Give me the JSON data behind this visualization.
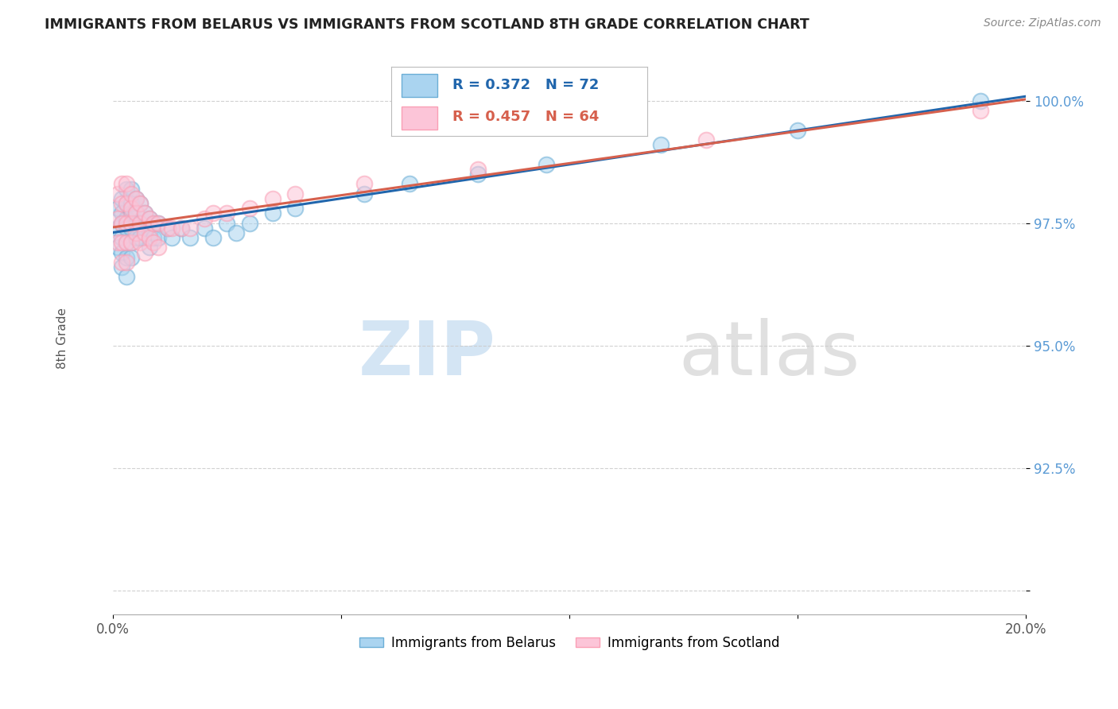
{
  "title": "IMMIGRANTS FROM BELARUS VS IMMIGRANTS FROM SCOTLAND 8TH GRADE CORRELATION CHART",
  "source": "Source: ZipAtlas.com",
  "ylabel": "8th Grade",
  "legend_label1": "Immigrants from Belarus",
  "legend_label2": "Immigrants from Scotland",
  "R1": 0.372,
  "N1": 72,
  "R2": 0.457,
  "N2": 64,
  "color1": "#6baed6",
  "color2": "#fa9fb5",
  "line_color1": "#2166ac",
  "line_color2": "#d6604d",
  "xlim": [
    0.0,
    0.2
  ],
  "ylim": [
    0.895,
    1.008
  ],
  "xticks": [
    0.0,
    0.05,
    0.1,
    0.15,
    0.2
  ],
  "yticks": [
    0.9,
    0.925,
    0.95,
    0.975,
    1.0
  ],
  "ytick_labels": [
    "",
    "92.5%",
    "95.0%",
    "97.5%",
    "100.0%"
  ],
  "watermark_zip": "ZIP",
  "watermark_atlas": "atlas",
  "background_color": "#ffffff",
  "scatter_blue": {
    "x": [
      0.001,
      0.001,
      0.001,
      0.002,
      0.002,
      0.002,
      0.002,
      0.002,
      0.002,
      0.003,
      0.003,
      0.003,
      0.003,
      0.003,
      0.003,
      0.003,
      0.004,
      0.004,
      0.004,
      0.004,
      0.004,
      0.004,
      0.005,
      0.005,
      0.005,
      0.005,
      0.006,
      0.006,
      0.006,
      0.007,
      0.007,
      0.008,
      0.008,
      0.008,
      0.009,
      0.009,
      0.01,
      0.01,
      0.012,
      0.013,
      0.015,
      0.017,
      0.02,
      0.022,
      0.025,
      0.027,
      0.03,
      0.035,
      0.04,
      0.055,
      0.065,
      0.08,
      0.095,
      0.12,
      0.15,
      0.19
    ],
    "y": [
      0.978,
      0.974,
      0.97,
      0.98,
      0.977,
      0.975,
      0.972,
      0.969,
      0.966,
      0.982,
      0.979,
      0.976,
      0.974,
      0.971,
      0.968,
      0.964,
      0.982,
      0.979,
      0.977,
      0.974,
      0.971,
      0.968,
      0.98,
      0.977,
      0.975,
      0.972,
      0.979,
      0.975,
      0.972,
      0.977,
      0.974,
      0.976,
      0.973,
      0.97,
      0.975,
      0.972,
      0.975,
      0.972,
      0.974,
      0.972,
      0.974,
      0.972,
      0.974,
      0.972,
      0.975,
      0.973,
      0.975,
      0.977,
      0.978,
      0.981,
      0.983,
      0.985,
      0.987,
      0.991,
      0.994,
      1.0
    ]
  },
  "scatter_pink": {
    "x": [
      0.001,
      0.001,
      0.001,
      0.002,
      0.002,
      0.002,
      0.002,
      0.002,
      0.003,
      0.003,
      0.003,
      0.003,
      0.003,
      0.004,
      0.004,
      0.004,
      0.004,
      0.005,
      0.005,
      0.005,
      0.006,
      0.006,
      0.006,
      0.007,
      0.007,
      0.007,
      0.008,
      0.008,
      0.009,
      0.009,
      0.01,
      0.01,
      0.012,
      0.013,
      0.015,
      0.017,
      0.02,
      0.022,
      0.025,
      0.03,
      0.035,
      0.04,
      0.055,
      0.08,
      0.13,
      0.19
    ],
    "y": [
      0.981,
      0.976,
      0.971,
      0.983,
      0.979,
      0.975,
      0.971,
      0.967,
      0.983,
      0.979,
      0.975,
      0.971,
      0.967,
      0.981,
      0.978,
      0.975,
      0.971,
      0.98,
      0.977,
      0.973,
      0.979,
      0.975,
      0.971,
      0.977,
      0.973,
      0.969,
      0.976,
      0.972,
      0.975,
      0.971,
      0.975,
      0.97,
      0.974,
      0.974,
      0.974,
      0.974,
      0.976,
      0.977,
      0.977,
      0.978,
      0.98,
      0.981,
      0.983,
      0.986,
      0.992,
      0.998
    ]
  }
}
